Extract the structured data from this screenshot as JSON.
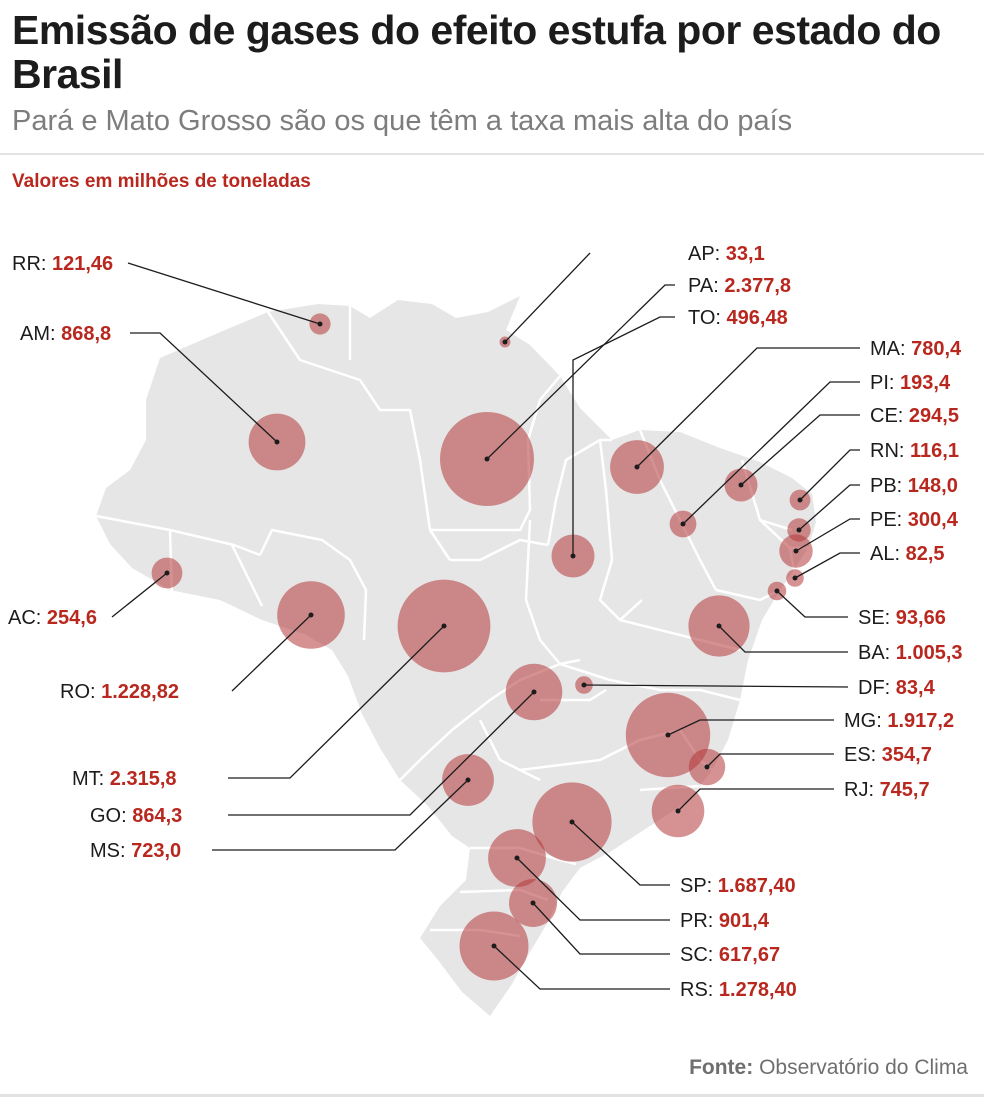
{
  "header": {
    "title": "Emissão de gases do efeito estufa por estado do Brasil",
    "subtitle": "Pará e Mato Grosso são os que têm a taxa mais alta do país",
    "unit_note": "Valores em milhões de toneladas"
  },
  "colors": {
    "accent": "#b8281f",
    "bubble": "#b5393a",
    "land": "#e6e6e6",
    "borders": "#ffffff"
  },
  "chart_data": {
    "type": "bubble-map",
    "title": "Emissão de gases do efeito estufa por estado do Brasil",
    "unit": "milhões de toneladas",
    "states": [
      {
        "code": "RR",
        "value": 121.46,
        "value_label": "121,46"
      },
      {
        "code": "AM",
        "value": 868.8,
        "value_label": "868,8"
      },
      {
        "code": "AC",
        "value": 254.6,
        "value_label": "254,6"
      },
      {
        "code": "RO",
        "value": 1228.82,
        "value_label": "1.228,82"
      },
      {
        "code": "MT",
        "value": 2315.8,
        "value_label": "2.315,8"
      },
      {
        "code": "GO",
        "value": 864.3,
        "value_label": "864,3"
      },
      {
        "code": "MS",
        "value": 723.0,
        "value_label": "723,0"
      },
      {
        "code": "AP",
        "value": 33.1,
        "value_label": "33,1"
      },
      {
        "code": "PA",
        "value": 2377.8,
        "value_label": "2.377,8"
      },
      {
        "code": "TO",
        "value": 496.48,
        "value_label": "496,48"
      },
      {
        "code": "MA",
        "value": 780.4,
        "value_label": "780,4"
      },
      {
        "code": "PI",
        "value": 193.4,
        "value_label": "193,4"
      },
      {
        "code": "CE",
        "value": 294.5,
        "value_label": "294,5"
      },
      {
        "code": "RN",
        "value": 116.1,
        "value_label": "116,1"
      },
      {
        "code": "PB",
        "value": 148.0,
        "value_label": "148,0"
      },
      {
        "code": "PE",
        "value": 300.4,
        "value_label": "300,4"
      },
      {
        "code": "AL",
        "value": 82.5,
        "value_label": "82,5"
      },
      {
        "code": "SE",
        "value": 93.66,
        "value_label": "93,66"
      },
      {
        "code": "BA",
        "value": 1005.3,
        "value_label": "1.005,3"
      },
      {
        "code": "DF",
        "value": 83.4,
        "value_label": "83,4"
      },
      {
        "code": "MG",
        "value": 1917.2,
        "value_label": "1.917,2"
      },
      {
        "code": "ES",
        "value": 354.7,
        "value_label": "354,7"
      },
      {
        "code": "RJ",
        "value": 745.7,
        "value_label": "745,7"
      },
      {
        "code": "SP",
        "value": 1687.4,
        "value_label": "1.687,40"
      },
      {
        "code": "PR",
        "value": 901.4,
        "value_label": "901,4"
      },
      {
        "code": "SC",
        "value": 617.67,
        "value_label": "617,67"
      },
      {
        "code": "RS",
        "value": 1278.4,
        "value_label": "1.278,40"
      }
    ]
  },
  "footer": {
    "source_label": "Fonte:",
    "source_name": "Observatório do Clima"
  }
}
